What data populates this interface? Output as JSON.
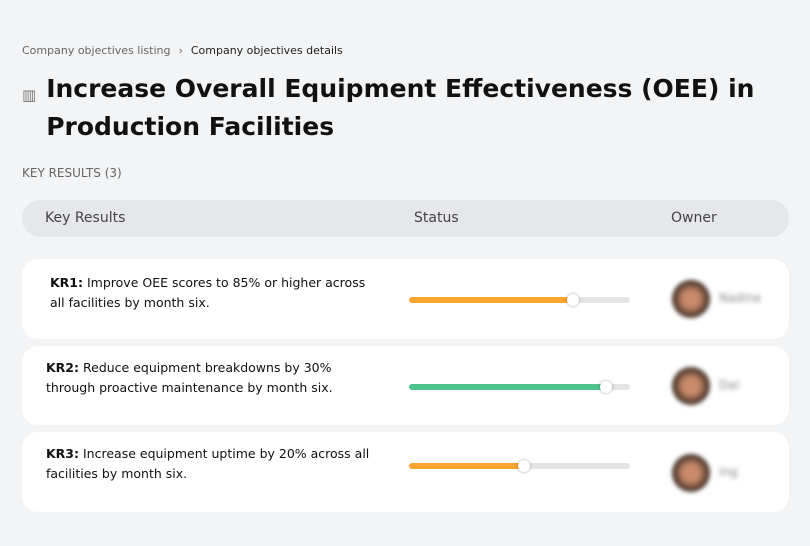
{
  "breadcrumb": {
    "parent": "Company objectives listing",
    "separator": "›",
    "current": "Company objectives details"
  },
  "title": "Increase Overall Equipment Effectiveness (OEE) in Production Facilities",
  "title_icon": "chart-building-icon",
  "key_results_label": "KEY RESULTS (3)",
  "table": {
    "headers": [
      "Key Results",
      "Status",
      "Owner"
    ]
  },
  "key_results": [
    {
      "id": "KR1:",
      "text": "Improve OEE scores to 85% or higher across all facilities by month six.",
      "progress": 74,
      "color": "#fea530",
      "owner": "Nadine"
    },
    {
      "id": "KR2:",
      "text": "Reduce equipment breakdowns by 30% through proactive maintenance by month six.",
      "progress": 89,
      "color": "#4fc38d",
      "owner": "Dai"
    },
    {
      "id": "KR3:",
      "text": "Increase equipment uptime by 20% across all facilities by month six.",
      "progress": 52,
      "color": "#fea530",
      "owner": "Ing"
    }
  ]
}
